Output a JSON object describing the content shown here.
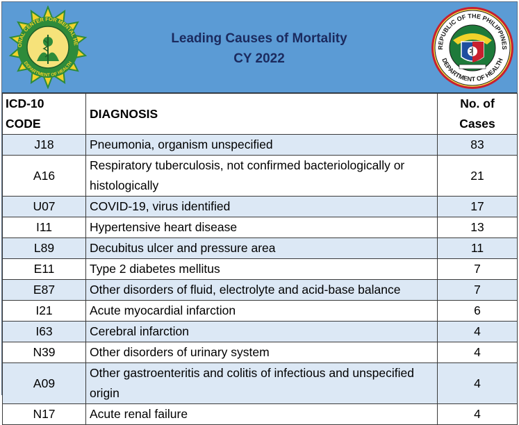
{
  "header": {
    "title_line1": "Leading Causes of Mortality",
    "title_line2": "CY 2022",
    "left_logo_text_top": "NATIONAL CENTER FOR MENTAL HEALTH",
    "left_logo_text_bottom": "DEPARTMENT OF HEALTH",
    "right_logo_text_top": "REPUBLIC OF THE PHILIPPINES",
    "right_logo_text_bottom": "DEPARTMENT OF HEALTH"
  },
  "colors": {
    "header_bg": "#5b9bd5",
    "title": "#1b2a5e",
    "row_alt": "#dce8f5",
    "left_logo_green": "#2e8b3a",
    "left_logo_yellow": "#f2d22a",
    "right_logo_red": "#c8202f",
    "right_logo_green": "#1e7a3a",
    "right_logo_blue": "#1f4fa0"
  },
  "table": {
    "columns": {
      "code": "ICD-10 CODE",
      "diagnosis": "DIAGNOSIS",
      "cases": "No. of Cases"
    },
    "rows": [
      {
        "code": "J18",
        "diagnosis": "Pneumonia, organism unspecified",
        "cases": "83"
      },
      {
        "code": "A16",
        "diagnosis": "Respiratory tuberculosis, not confirmed bacteriologically or histologically",
        "cases": "21"
      },
      {
        "code": "U07",
        "diagnosis": "COVID-19, virus identified",
        "cases": "17"
      },
      {
        "code": "I11",
        "diagnosis": "Hypertensive heart disease",
        "cases": "13"
      },
      {
        "code": "L89",
        "diagnosis": "Decubitus ulcer and pressure area",
        "cases": "11"
      },
      {
        "code": "E11",
        "diagnosis": "Type 2 diabetes mellitus",
        "cases": "7"
      },
      {
        "code": "E87",
        "diagnosis": "Other disorders of fluid, electrolyte and acid-base balance",
        "cases": "7"
      },
      {
        "code": "I21",
        "diagnosis": "Acute myocardial infarction",
        "cases": "6"
      },
      {
        "code": "I63",
        "diagnosis": "Cerebral infarction",
        "cases": "4"
      },
      {
        "code": "N39",
        "diagnosis": "Other disorders of urinary system",
        "cases": "4"
      },
      {
        "code": "A09",
        "diagnosis": "Other gastroenteritis and colitis of infectious and unspecified origin",
        "cases": "4"
      },
      {
        "code": "N17",
        "diagnosis": "Acute renal failure",
        "cases": "4"
      }
    ]
  }
}
